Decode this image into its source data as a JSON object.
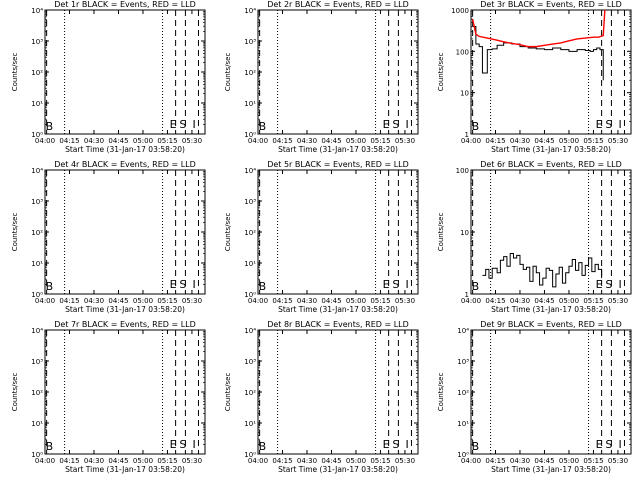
{
  "figure": {
    "background": "#ffffff",
    "axis_color": "#000000",
    "events_color": "#000000",
    "lld_color": "#ff0000",
    "flag_labels": {
      "b": "B",
      "e": "E",
      "s": "S",
      "i": "I"
    }
  },
  "chart_data": [
    {
      "type": "line",
      "title": "Det 1r BLACK = Events, RED = LLD",
      "xlabel": "Start Time (31-Jan-17 03:58:20)",
      "ylabel": "Counts/sec",
      "xlim": [
        "04:00",
        "05:38"
      ],
      "x_ticks": [
        "04:00",
        "04:15",
        "04:30",
        "04:45",
        "05:00",
        "05:15",
        "05:30"
      ],
      "y_scale": "log",
      "ylim": [
        1,
        10000
      ],
      "y_ticks": [
        "10⁰",
        "10¹",
        "10²",
        "10³",
        "10⁴"
      ],
      "markers": [
        {
          "label": "",
          "x": "04:01",
          "style": "dashed"
        },
        {
          "label": "",
          "x": "04:12",
          "style": "dotted"
        },
        {
          "label": "",
          "x": "05:12",
          "style": "dotted"
        },
        {
          "label": "E",
          "x": "05:20",
          "style": "dashed"
        },
        {
          "label": "S",
          "x": "05:26",
          "style": "dashed"
        },
        {
          "label": "I",
          "x": "05:34",
          "style": "dashed"
        },
        {
          "label": "B",
          "x": "04:01",
          "style": "none"
        }
      ],
      "series": []
    },
    {
      "type": "line",
      "title": "Det 2r BLACK = Events, RED = LLD",
      "xlabel": "Start Time (31-Jan-17 03:58:20)",
      "ylabel": "Counts/sec",
      "xlim": [
        "04:00",
        "05:38"
      ],
      "x_ticks": [
        "04:00",
        "04:15",
        "04:30",
        "04:45",
        "05:00",
        "05:15",
        "05:30"
      ],
      "y_scale": "log",
      "ylim": [
        1,
        10000
      ],
      "y_ticks": [
        "10⁰",
        "10¹",
        "10²",
        "10³",
        "10⁴"
      ],
      "markers": [
        {
          "label": "",
          "x": "04:01",
          "style": "dashed"
        },
        {
          "label": "",
          "x": "04:12",
          "style": "dotted"
        },
        {
          "label": "",
          "x": "05:12",
          "style": "dotted"
        },
        {
          "label": "E",
          "x": "05:20",
          "style": "dashed"
        },
        {
          "label": "S",
          "x": "05:26",
          "style": "dashed"
        },
        {
          "label": "I",
          "x": "05:34",
          "style": "dashed"
        },
        {
          "label": "B",
          "x": "04:01",
          "style": "none"
        }
      ],
      "series": []
    },
    {
      "type": "line",
      "title": "Det 3r BLACK = Events, RED = LLD",
      "xlabel": "Start Time (31-Jan-17 03:58:20)",
      "ylabel": "Counts/sec",
      "xlim": [
        "04:00",
        "05:38"
      ],
      "x_ticks": [
        "04:00",
        "04:15",
        "04:30",
        "04:45",
        "05:00",
        "05:15",
        "05:30"
      ],
      "y_scale": "log",
      "ylim": [
        1,
        1000
      ],
      "y_ticks": [
        "1",
        "10",
        "100",
        "1000"
      ],
      "markers": [
        {
          "label": "",
          "x": "04:01",
          "style": "dashed"
        },
        {
          "label": "",
          "x": "04:12",
          "style": "dotted"
        },
        {
          "label": "",
          "x": "05:12",
          "style": "dotted"
        },
        {
          "label": "E",
          "x": "05:20",
          "style": "dashed"
        },
        {
          "label": "S",
          "x": "05:26",
          "style": "dashed"
        },
        {
          "label": "I",
          "x": "05:34",
          "style": "dashed"
        },
        {
          "label": "B",
          "x": "04:01",
          "style": "none"
        }
      ],
      "series": [
        {
          "name": "Events",
          "color": "#000000",
          "style": "step",
          "x": [
            "04:01",
            "04:03",
            "04:05",
            "04:07",
            "04:10",
            "04:13",
            "04:16",
            "04:20",
            "04:25",
            "04:30",
            "04:35",
            "04:40",
            "04:45",
            "04:50",
            "04:55",
            "05:00",
            "05:05",
            "05:10",
            "05:13",
            "05:15",
            "05:17",
            "05:19",
            "05:21"
          ],
          "y": [
            400,
            150,
            130,
            30,
            110,
            115,
            140,
            160,
            150,
            130,
            120,
            115,
            110,
            120,
            110,
            100,
            110,
            105,
            100,
            110,
            120,
            110,
            20
          ]
        },
        {
          "name": "LLD",
          "color": "#ff0000",
          "style": "line",
          "x": [
            "04:01",
            "04:03",
            "04:05",
            "04:10",
            "04:15",
            "04:20",
            "04:25",
            "04:30",
            "04:35",
            "04:40",
            "04:45",
            "04:50",
            "04:55",
            "05:00",
            "05:05",
            "05:10",
            "05:15",
            "05:18",
            "05:21",
            "05:22"
          ],
          "y": [
            600,
            260,
            230,
            210,
            190,
            170,
            155,
            145,
            130,
            130,
            140,
            150,
            160,
            180,
            200,
            210,
            220,
            220,
            240,
            1000
          ]
        }
      ]
    },
    {
      "type": "line",
      "title": "Det 4r BLACK = Events, RED = LLD",
      "xlabel": "Start Time (31-Jan-17 03:58:20)",
      "ylabel": "Counts/sec",
      "xlim": [
        "04:00",
        "05:38"
      ],
      "x_ticks": [
        "04:00",
        "04:15",
        "04:30",
        "04:45",
        "05:00",
        "05:15",
        "05:30"
      ],
      "y_scale": "log",
      "ylim": [
        1,
        10000
      ],
      "y_ticks": [
        "10⁰",
        "10¹",
        "10²",
        "10³",
        "10⁴"
      ],
      "markers": [
        {
          "label": "",
          "x": "04:01",
          "style": "dashed"
        },
        {
          "label": "",
          "x": "04:12",
          "style": "dotted"
        },
        {
          "label": "",
          "x": "05:12",
          "style": "dotted"
        },
        {
          "label": "E",
          "x": "05:20",
          "style": "dashed"
        },
        {
          "label": "S",
          "x": "05:26",
          "style": "dashed"
        },
        {
          "label": "I",
          "x": "05:34",
          "style": "dashed"
        },
        {
          "label": "B",
          "x": "04:01",
          "style": "none"
        }
      ],
      "series": []
    },
    {
      "type": "line",
      "title": "Det 5r BLACK = Events, RED = LLD",
      "xlabel": "Start Time (31-Jan-17 03:58:20)",
      "ylabel": "Counts/sec",
      "xlim": [
        "04:00",
        "05:38"
      ],
      "x_ticks": [
        "04:00",
        "04:15",
        "04:30",
        "04:45",
        "05:00",
        "05:15",
        "05:30"
      ],
      "y_scale": "log",
      "ylim": [
        1,
        10000
      ],
      "y_ticks": [
        "10⁰",
        "10¹",
        "10²",
        "10³",
        "10⁴"
      ],
      "markers": [
        {
          "label": "",
          "x": "04:01",
          "style": "dashed"
        },
        {
          "label": "",
          "x": "04:12",
          "style": "dotted"
        },
        {
          "label": "",
          "x": "05:12",
          "style": "dotted"
        },
        {
          "label": "E",
          "x": "05:20",
          "style": "dashed"
        },
        {
          "label": "S",
          "x": "05:26",
          "style": "dashed"
        },
        {
          "label": "I",
          "x": "05:34",
          "style": "dashed"
        },
        {
          "label": "B",
          "x": "04:01",
          "style": "none"
        }
      ],
      "series": []
    },
    {
      "type": "line",
      "title": "Det 6r BLACK = Events, RED = LLD",
      "xlabel": "Start Time (31-Jan-17 03:58:20)",
      "ylabel": "Counts/sec",
      "xlim": [
        "04:00",
        "05:38"
      ],
      "x_ticks": [
        "04:00",
        "04:15",
        "04:30",
        "04:45",
        "05:00",
        "05:15",
        "05:30"
      ],
      "y_scale": "log",
      "ylim": [
        1,
        100
      ],
      "y_ticks": [
        "1",
        "10",
        "100"
      ],
      "markers": [
        {
          "label": "",
          "x": "04:01",
          "style": "dashed"
        },
        {
          "label": "",
          "x": "04:12",
          "style": "dotted"
        },
        {
          "label": "",
          "x": "05:12",
          "style": "dotted"
        },
        {
          "label": "E",
          "x": "05:20",
          "style": "dashed"
        },
        {
          "label": "S",
          "x": "05:26",
          "style": "dashed"
        },
        {
          "label": "I",
          "x": "05:34",
          "style": "dashed"
        },
        {
          "label": "B",
          "x": "04:01",
          "style": "none"
        }
      ],
      "series": [
        {
          "name": "Events",
          "color": "#000000",
          "style": "step",
          "x": [
            "04:07",
            "04:09",
            "04:11",
            "04:13",
            "04:16",
            "04:18",
            "04:20",
            "04:22",
            "04:24",
            "04:26",
            "04:28",
            "04:30",
            "04:32",
            "04:34",
            "04:36",
            "04:38",
            "04:40",
            "04:42",
            "04:44",
            "04:46",
            "04:48",
            "04:50",
            "04:52",
            "04:54",
            "04:56",
            "04:58",
            "05:00",
            "05:02",
            "05:04",
            "05:06",
            "05:08",
            "05:10",
            "05:12",
            "05:14",
            "05:16",
            "05:18",
            "05:20"
          ],
          "y": [
            2.0,
            2.5,
            1.8,
            2.6,
            2.2,
            3.5,
            4.0,
            2.8,
            4.5,
            3.8,
            4.2,
            3.0,
            2.5,
            2.7,
            1.6,
            2.8,
            2.2,
            1.4,
            1.8,
            2.6,
            2.4,
            1.3,
            2.1,
            2.7,
            1.5,
            2.2,
            2.8,
            3.6,
            2.4,
            3.2,
            2.0,
            2.9,
            3.8,
            2.3,
            3.0,
            2.5,
            1.8
          ]
        }
      ]
    },
    {
      "type": "line",
      "title": "Det 7r BLACK = Events, RED = LLD",
      "xlabel": "Start Time (31-Jan-17 03:58:20)",
      "ylabel": "Counts/sec",
      "xlim": [
        "04:00",
        "05:38"
      ],
      "x_ticks": [
        "04:00",
        "04:15",
        "04:30",
        "04:45",
        "05:00",
        "05:15",
        "05:30"
      ],
      "y_scale": "log",
      "ylim": [
        1,
        10000
      ],
      "y_ticks": [
        "10⁰",
        "10¹",
        "10²",
        "10³",
        "10⁴"
      ],
      "markers": [
        {
          "label": "",
          "x": "04:01",
          "style": "dashed"
        },
        {
          "label": "",
          "x": "04:12",
          "style": "dotted"
        },
        {
          "label": "",
          "x": "05:12",
          "style": "dotted"
        },
        {
          "label": "E",
          "x": "05:20",
          "style": "dashed"
        },
        {
          "label": "S",
          "x": "05:26",
          "style": "dashed"
        },
        {
          "label": "I",
          "x": "05:34",
          "style": "dashed"
        },
        {
          "label": "B",
          "x": "04:01",
          "style": "none"
        }
      ],
      "series": []
    },
    {
      "type": "line",
      "title": "Det 8r BLACK = Events, RED = LLD",
      "xlabel": "Start Time (31-Jan-17 03:58:20)",
      "ylabel": "Counts/sec",
      "xlim": [
        "04:00",
        "05:38"
      ],
      "x_ticks": [
        "04:00",
        "04:15",
        "04:30",
        "04:45",
        "05:00",
        "05:15",
        "05:30"
      ],
      "y_scale": "log",
      "ylim": [
        1,
        10000
      ],
      "y_ticks": [
        "10⁰",
        "10¹",
        "10²",
        "10³",
        "10⁴"
      ],
      "markers": [
        {
          "label": "",
          "x": "04:01",
          "style": "dashed"
        },
        {
          "label": "",
          "x": "04:12",
          "style": "dotted"
        },
        {
          "label": "",
          "x": "05:12",
          "style": "dotted"
        },
        {
          "label": "E",
          "x": "05:20",
          "style": "dashed"
        },
        {
          "label": "S",
          "x": "05:26",
          "style": "dashed"
        },
        {
          "label": "I",
          "x": "05:34",
          "style": "dashed"
        },
        {
          "label": "B",
          "x": "04:01",
          "style": "none"
        }
      ],
      "series": []
    },
    {
      "type": "line",
      "title": "Det 9r BLACK = Events, RED = LLD",
      "xlabel": "Start Time (31-Jan-17 03:58:20)",
      "ylabel": "Counts/sec",
      "xlim": [
        "04:00",
        "05:38"
      ],
      "x_ticks": [
        "04:00",
        "04:15",
        "04:30",
        "04:45",
        "05:00",
        "05:15",
        "05:30"
      ],
      "y_scale": "log",
      "ylim": [
        1,
        10000
      ],
      "y_ticks": [
        "10⁰",
        "10¹",
        "10²",
        "10³",
        "10⁴"
      ],
      "markers": [
        {
          "label": "",
          "x": "04:01",
          "style": "dashed"
        },
        {
          "label": "",
          "x": "04:12",
          "style": "dotted"
        },
        {
          "label": "",
          "x": "05:12",
          "style": "dotted"
        },
        {
          "label": "E",
          "x": "05:20",
          "style": "dashed"
        },
        {
          "label": "S",
          "x": "05:26",
          "style": "dashed"
        },
        {
          "label": "I",
          "x": "05:34",
          "style": "dashed"
        },
        {
          "label": "B",
          "x": "04:01",
          "style": "none"
        }
      ],
      "series": []
    }
  ]
}
